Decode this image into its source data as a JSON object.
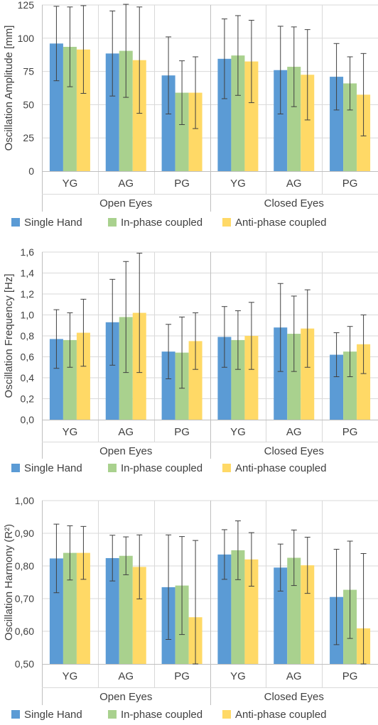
{
  "colors": {
    "single": "#5b9bd5",
    "inphase": "#a9d18e",
    "antiphase": "#ffd966",
    "grid": "#d9d9d9",
    "axis": "#bfbfbf",
    "text": "#404040"
  },
  "chart_data": [
    {
      "type": "bar",
      "ylabel": "Oscillation Amplitude [mm]",
      "ylim": [
        0,
        125
      ],
      "yticks": [
        "0",
        "25",
        "50",
        "75",
        "100",
        "125"
      ],
      "groups": [
        "Open Eyes",
        "Closed Eyes"
      ],
      "categories": [
        "YG",
        "AG",
        "PG",
        "YG",
        "AG",
        "PG"
      ],
      "legend": [
        "Single Hand",
        "In-phase coupled",
        "Anti-phase coupled"
      ],
      "legend_position": "bottom",
      "grid": true,
      "series": [
        {
          "name": "Single Hand",
          "values": [
            96,
            88.5,
            72,
            84.5,
            76,
            71
          ],
          "errors": [
            28,
            32,
            29,
            30,
            33,
            25
          ]
        },
        {
          "name": "In-phase coupled",
          "values": [
            93.5,
            90.5,
            59,
            87,
            78.5,
            66
          ],
          "errors": [
            30,
            35,
            24,
            30,
            30,
            20
          ]
        },
        {
          "name": "Anti-phase coupled",
          "values": [
            91.5,
            83.5,
            59,
            82.5,
            72.5,
            57.5
          ],
          "errors": [
            33,
            40,
            27,
            31,
            34,
            31
          ]
        }
      ]
    },
    {
      "type": "bar",
      "ylabel": "Oscillation Frequency [Hz]",
      "ylim": [
        0,
        1.6
      ],
      "yticks": [
        "0,0",
        "0,2",
        "0,4",
        "0,6",
        "0,8",
        "1,0",
        "1,2",
        "1,4",
        "1,6"
      ],
      "groups": [
        "Open Eyes",
        "Closed Eyes"
      ],
      "categories": [
        "YG",
        "AG",
        "PG",
        "YG",
        "AG",
        "PG"
      ],
      "legend": [
        "Single Hand",
        "In-phase coupled",
        "Anti-phase coupled"
      ],
      "legend_position": "bottom",
      "grid": true,
      "series": [
        {
          "name": "Single Hand",
          "values": [
            0.77,
            0.93,
            0.65,
            0.79,
            0.88,
            0.62
          ],
          "errors": [
            0.28,
            0.41,
            0.26,
            0.29,
            0.42,
            0.21
          ]
        },
        {
          "name": "In-phase coupled",
          "values": [
            0.76,
            0.98,
            0.64,
            0.76,
            0.82,
            0.65
          ],
          "errors": [
            0.26,
            0.53,
            0.34,
            0.28,
            0.36,
            0.24
          ]
        },
        {
          "name": "Anti-phase coupled",
          "values": [
            0.83,
            1.02,
            0.75,
            0.8,
            0.87,
            0.72
          ],
          "errors": [
            0.32,
            0.57,
            0.27,
            0.32,
            0.37,
            0.28
          ]
        }
      ]
    },
    {
      "type": "bar",
      "ylabel": "Oscillation Harmony (R²)",
      "ylim": [
        0.5,
        1.0
      ],
      "yticks": [
        "0,50",
        "0,60",
        "0,70",
        "0,80",
        "0,90",
        "1,00"
      ],
      "groups": [
        "Open Eyes",
        "Closed Eyes"
      ],
      "categories": [
        "YG",
        "AG",
        "PG",
        "YG",
        "AG",
        "PG"
      ],
      "legend": [
        "Single Hand",
        "In-phase coupled",
        "Anti-phase coupled"
      ],
      "legend_position": "bottom",
      "grid": true,
      "series": [
        {
          "name": "Single Hand",
          "values": [
            0.823,
            0.824,
            0.735,
            0.835,
            0.795,
            0.705
          ],
          "errors": [
            0.105,
            0.07,
            0.16,
            0.076,
            0.072,
            0.146
          ]
        },
        {
          "name": "In-phase coupled",
          "values": [
            0.84,
            0.831,
            0.74,
            0.848,
            0.825,
            0.727
          ],
          "errors": [
            0.083,
            0.058,
            0.15,
            0.09,
            0.085,
            0.149
          ]
        },
        {
          "name": "Anti-phase coupled",
          "values": [
            0.84,
            0.797,
            0.643,
            0.82,
            0.802,
            0.609
          ],
          "errors": [
            0.081,
            0.098,
            0.235,
            0.082,
            0.086,
            0.229
          ]
        }
      ]
    }
  ]
}
